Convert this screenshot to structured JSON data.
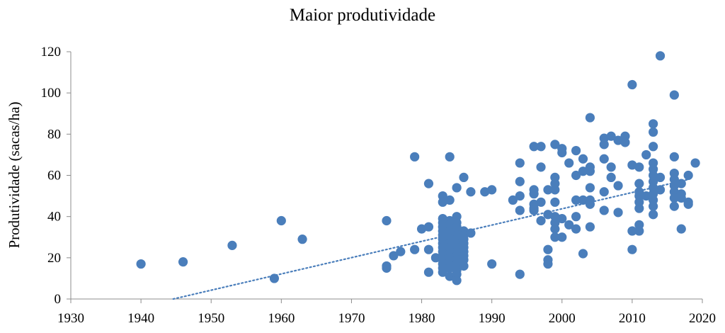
{
  "chart_data": {
    "type": "scatter",
    "title": "Maior produtividade",
    "xlabel": "",
    "ylabel": "Produtividade (sacas/ha)",
    "xlim": [
      1930,
      2020
    ],
    "ylim": [
      0,
      120
    ],
    "x_ticks": [
      1930,
      1940,
      1950,
      1960,
      1970,
      1980,
      1990,
      2000,
      2010,
      2020
    ],
    "y_ticks": [
      0,
      20,
      40,
      60,
      80,
      100,
      120
    ],
    "grid": false,
    "legend": "none",
    "marker_color": "#4a7ebb",
    "trendline": {
      "type": "linear",
      "style": "dotted",
      "color": "#4a7ebb",
      "from": [
        1944.6,
        0
      ],
      "to": [
        2018,
        58
      ]
    },
    "points": [
      [
        1940,
        17
      ],
      [
        1946,
        18
      ],
      [
        1953,
        26
      ],
      [
        1959,
        10
      ],
      [
        1960,
        38
      ],
      [
        1963,
        29
      ],
      [
        1975,
        38
      ],
      [
        1975,
        16
      ],
      [
        1975,
        15
      ],
      [
        1976,
        21
      ],
      [
        1977,
        23
      ],
      [
        1979,
        69
      ],
      [
        1979,
        24
      ],
      [
        1980,
        34
      ],
      [
        1981,
        56
      ],
      [
        1981,
        35
      ],
      [
        1981,
        24
      ],
      [
        1981,
        13
      ],
      [
        1982,
        20
      ],
      [
        1983,
        50
      ],
      [
        1983,
        47
      ],
      [
        1983,
        39
      ],
      [
        1983,
        37
      ],
      [
        1983,
        35
      ],
      [
        1983,
        33
      ],
      [
        1983,
        31
      ],
      [
        1983,
        29
      ],
      [
        1983,
        27
      ],
      [
        1983,
        25
      ],
      [
        1983,
        23
      ],
      [
        1983,
        21
      ],
      [
        1983,
        19
      ],
      [
        1983,
        17
      ],
      [
        1983,
        15
      ],
      [
        1983,
        13
      ],
      [
        1984,
        69
      ],
      [
        1984,
        48
      ],
      [
        1984,
        38
      ],
      [
        1984,
        36
      ],
      [
        1984,
        33
      ],
      [
        1984,
        31
      ],
      [
        1984,
        29
      ],
      [
        1984,
        27
      ],
      [
        1984,
        25
      ],
      [
        1984,
        22
      ],
      [
        1984,
        20
      ],
      [
        1984,
        18
      ],
      [
        1984,
        15
      ],
      [
        1984,
        11
      ],
      [
        1985,
        40
      ],
      [
        1985,
        37
      ],
      [
        1985,
        35
      ],
      [
        1985,
        33
      ],
      [
        1985,
        31
      ],
      [
        1985,
        29
      ],
      [
        1985,
        27
      ],
      [
        1985,
        25
      ],
      [
        1985,
        23
      ],
      [
        1985,
        21
      ],
      [
        1985,
        19
      ],
      [
        1985,
        17
      ],
      [
        1985,
        14
      ],
      [
        1985,
        12
      ],
      [
        1985,
        9
      ],
      [
        1985,
        54
      ],
      [
        1986,
        59
      ],
      [
        1986,
        33
      ],
      [
        1986,
        31
      ],
      [
        1986,
        29
      ],
      [
        1986,
        27
      ],
      [
        1986,
        25
      ],
      [
        1986,
        23
      ],
      [
        1986,
        21
      ],
      [
        1986,
        19
      ],
      [
        1986,
        16
      ],
      [
        1987,
        52
      ],
      [
        1987,
        32
      ],
      [
        1989,
        52
      ],
      [
        1990,
        53
      ],
      [
        1990,
        17
      ],
      [
        1993,
        48
      ],
      [
        1994,
        66
      ],
      [
        1994,
        57
      ],
      [
        1994,
        50
      ],
      [
        1994,
        43
      ],
      [
        1994,
        12
      ],
      [
        1996,
        74
      ],
      [
        1996,
        53
      ],
      [
        1996,
        51
      ],
      [
        1996,
        46
      ],
      [
        1996,
        44
      ],
      [
        1996,
        43
      ],
      [
        1997,
        74
      ],
      [
        1997,
        64
      ],
      [
        1997,
        47
      ],
      [
        1997,
        38
      ],
      [
        1998,
        53
      ],
      [
        1998,
        41
      ],
      [
        1998,
        24
      ],
      [
        1998,
        19
      ],
      [
        1998,
        17
      ],
      [
        1999,
        75
      ],
      [
        1999,
        59
      ],
      [
        1999,
        56
      ],
      [
        1999,
        53
      ],
      [
        1999,
        47
      ],
      [
        1999,
        40
      ],
      [
        1999,
        37
      ],
      [
        1999,
        34
      ],
      [
        1999,
        30
      ],
      [
        2000,
        73
      ],
      [
        2000,
        71
      ],
      [
        2000,
        39
      ],
      [
        2000,
        30
      ],
      [
        2001,
        66
      ],
      [
        2001,
        36
      ],
      [
        2002,
        72
      ],
      [
        2002,
        60
      ],
      [
        2002,
        48
      ],
      [
        2002,
        40
      ],
      [
        2002,
        34
      ],
      [
        2003,
        68
      ],
      [
        2003,
        62
      ],
      [
        2003,
        48
      ],
      [
        2003,
        22
      ],
      [
        2004,
        88
      ],
      [
        2004,
        64
      ],
      [
        2004,
        62
      ],
      [
        2004,
        54
      ],
      [
        2004,
        48
      ],
      [
        2004,
        46
      ],
      [
        2004,
        35
      ],
      [
        2006,
        78
      ],
      [
        2006,
        75
      ],
      [
        2006,
        68
      ],
      [
        2006,
        52
      ],
      [
        2006,
        43
      ],
      [
        2007,
        79
      ],
      [
        2007,
        64
      ],
      [
        2007,
        59
      ],
      [
        2008,
        77
      ],
      [
        2008,
        55
      ],
      [
        2008,
        42
      ],
      [
        2009,
        79
      ],
      [
        2009,
        76
      ],
      [
        2010,
        104
      ],
      [
        2010,
        65
      ],
      [
        2010,
        33
      ],
      [
        2010,
        24
      ],
      [
        2011,
        64
      ],
      [
        2011,
        56
      ],
      [
        2011,
        52
      ],
      [
        2011,
        50
      ],
      [
        2011,
        47
      ],
      [
        2011,
        44
      ],
      [
        2011,
        36
      ],
      [
        2011,
        33
      ],
      [
        2012,
        70
      ],
      [
        2012,
        50
      ],
      [
        2013,
        85
      ],
      [
        2013,
        81
      ],
      [
        2013,
        74
      ],
      [
        2013,
        66
      ],
      [
        2013,
        63
      ],
      [
        2013,
        60
      ],
      [
        2013,
        57
      ],
      [
        2013,
        54
      ],
      [
        2013,
        51
      ],
      [
        2013,
        48
      ],
      [
        2013,
        45
      ],
      [
        2013,
        41
      ],
      [
        2014,
        118
      ],
      [
        2014,
        59
      ],
      [
        2014,
        53
      ],
      [
        2016,
        99
      ],
      [
        2016,
        69
      ],
      [
        2016,
        61
      ],
      [
        2016,
        58
      ],
      [
        2016,
        55
      ],
      [
        2016,
        52
      ],
      [
        2016,
        49
      ],
      [
        2016,
        45
      ],
      [
        2017,
        56
      ],
      [
        2017,
        51
      ],
      [
        2017,
        49
      ],
      [
        2017,
        34
      ],
      [
        2018,
        60
      ],
      [
        2018,
        47
      ],
      [
        2018,
        46
      ],
      [
        2019,
        66
      ]
    ]
  }
}
